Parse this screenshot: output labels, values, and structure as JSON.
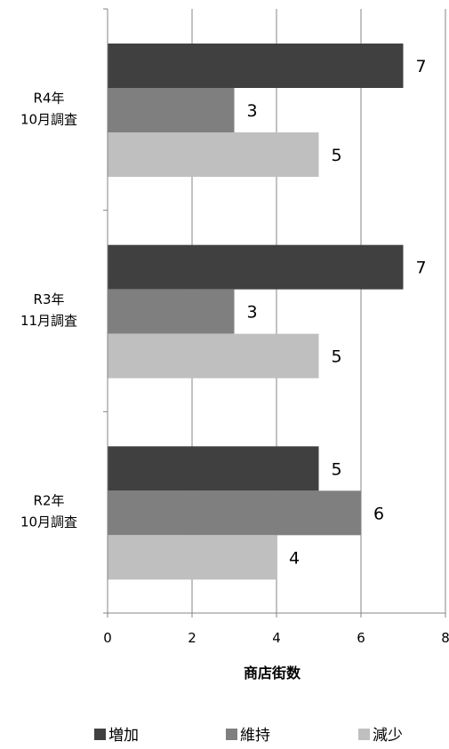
{
  "chart_data": {
    "type": "bar",
    "orientation": "horizontal",
    "categories": [
      "R4年\n10月調査",
      "R3年\n11月調査",
      "R2年\n10月調査"
    ],
    "series": [
      {
        "name": "増加",
        "values": [
          7,
          7,
          5
        ],
        "color": "#404040"
      },
      {
        "name": "維持",
        "values": [
          3,
          3,
          6
        ],
        "color": "#7f7f7f"
      },
      {
        "name": "減少",
        "values": [
          5,
          5,
          4
        ],
        "color": "#bfbfbf"
      }
    ],
    "xlabel": "商店街数",
    "xlim": [
      0,
      8
    ],
    "xticks": [
      0,
      2,
      4,
      6,
      8
    ],
    "grid": true,
    "legend": "bottom",
    "data_labels": true
  }
}
